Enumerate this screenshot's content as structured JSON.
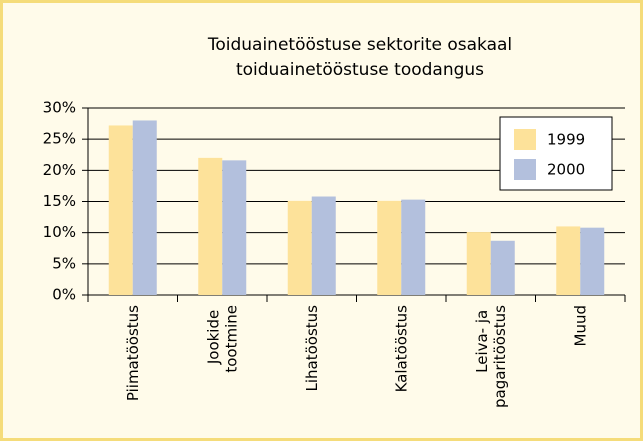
{
  "chart_data": {
    "type": "bar",
    "title": [
      "Toiduainetööstuse sektorite osakaal",
      "toiduainetööstuse toodangus"
    ],
    "categories": [
      "Piimatööstus",
      "Jookide tootmine",
      "Lihatööstus",
      "Kalatööstus",
      "Leiva- ja pagaritööstus",
      "Muud"
    ],
    "series": [
      {
        "name": "1999",
        "color": "#fde29a",
        "values": [
          27.2,
          22,
          15.1,
          15.1,
          10.1,
          11
        ]
      },
      {
        "name": "2000",
        "color": "#b3c0dd",
        "values": [
          28,
          21.6,
          15.8,
          15.3,
          8.7,
          10.8
        ]
      }
    ],
    "ylim": [
      0,
      30
    ],
    "yticks": [
      {
        "value": 0,
        "label": "0%"
      },
      {
        "value": 5,
        "label": "5%"
      },
      {
        "value": 10,
        "label": "10%"
      },
      {
        "value": 15,
        "label": "15%"
      },
      {
        "value": 20,
        "label": "20%"
      },
      {
        "value": 25,
        "label": "25%"
      },
      {
        "value": 30,
        "label": "30%"
      }
    ],
    "grid": true,
    "legend": "upper right"
  }
}
